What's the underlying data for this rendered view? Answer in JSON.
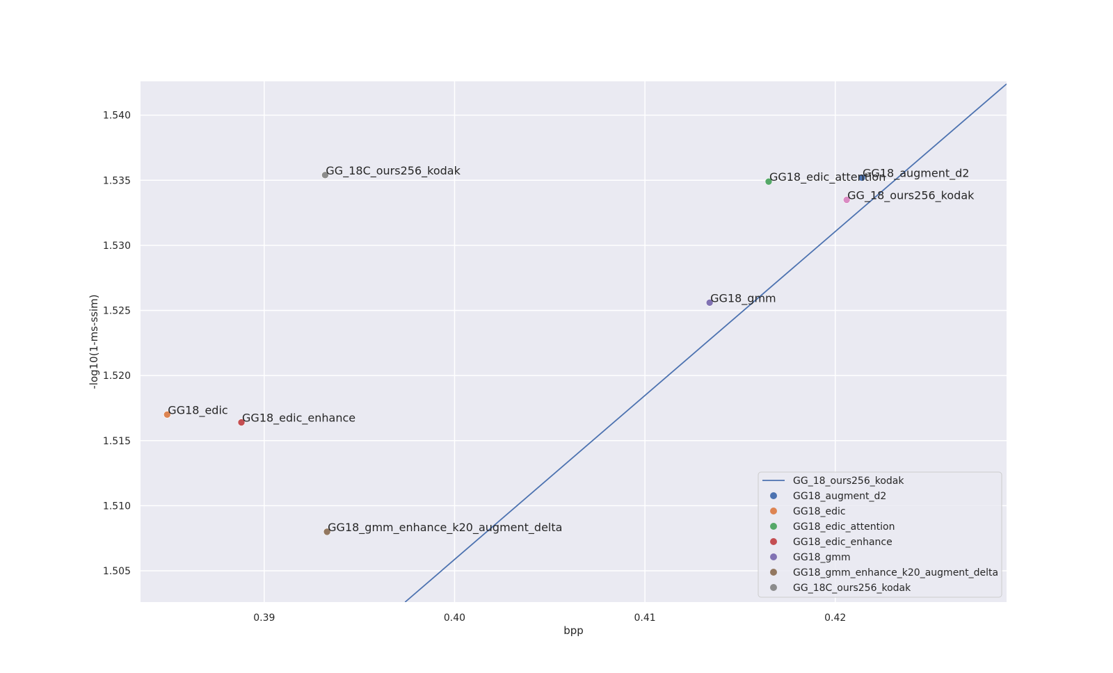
{
  "chart_data": {
    "type": "scatter",
    "xlabel": "bpp",
    "ylabel": "-log10(1-ms-ssim)",
    "xlim": [
      0.3835,
      0.429
    ],
    "ylim": [
      1.5026,
      1.5426
    ],
    "x_ticks": [
      0.39,
      0.4,
      0.41,
      0.42
    ],
    "x_tick_labels": [
      "0.39",
      "0.40",
      "0.41",
      "0.42"
    ],
    "y_ticks": [
      1.505,
      1.51,
      1.515,
      1.52,
      1.525,
      1.53,
      1.535,
      1.54
    ],
    "y_tick_labels": [
      "1.505",
      "1.510",
      "1.515",
      "1.520",
      "1.525",
      "1.530",
      "1.535",
      "1.540"
    ],
    "grid": true,
    "background": "#eaeaf2",
    "legend_position": "lower-right",
    "line": {
      "name": "GG_18_ours256_kodak",
      "color": "#4c72b0",
      "x": [
        0.3974,
        0.429
      ],
      "y": [
        1.5026,
        1.5424
      ]
    },
    "points": [
      {
        "name": "GG18_augment_d2",
        "x": 0.4214,
        "y": 1.5352,
        "color": "#4c72b0"
      },
      {
        "name": "GG18_edic",
        "x": 0.3849,
        "y": 1.517,
        "color": "#dd8452"
      },
      {
        "name": "GG18_edic_attention",
        "x": 0.4165,
        "y": 1.5349,
        "color": "#55a868"
      },
      {
        "name": "GG18_edic_enhance",
        "x": 0.3888,
        "y": 1.5164,
        "color": "#c44e52"
      },
      {
        "name": "GG18_gmm",
        "x": 0.4134,
        "y": 1.5256,
        "color": "#8172b3"
      },
      {
        "name": "GG18_gmm_enhance_k20_augment_delta",
        "x": 0.3933,
        "y": 1.508,
        "color": "#937860"
      },
      {
        "name": "GG_18C_ours256_kodak",
        "x": 0.3932,
        "y": 1.5354,
        "color": "#8c8c8c"
      },
      {
        "name": "GG_18_ours256_kodak",
        "x": 0.4206,
        "y": 1.5335,
        "color": "#da8bc3"
      }
    ],
    "legend": [
      {
        "label": "GG_18_ours256_kodak",
        "kind": "line",
        "color": "#4c72b0"
      },
      {
        "label": "GG18_augment_d2",
        "kind": "marker",
        "color": "#4c72b0"
      },
      {
        "label": "GG18_edic",
        "kind": "marker",
        "color": "#dd8452"
      },
      {
        "label": "GG18_edic_attention",
        "kind": "marker",
        "color": "#55a868"
      },
      {
        "label": "GG18_edic_enhance",
        "kind": "marker",
        "color": "#c44e52"
      },
      {
        "label": "GG18_gmm",
        "kind": "marker",
        "color": "#8172b3"
      },
      {
        "label": "GG18_gmm_enhance_k20_augment_delta",
        "kind": "marker",
        "color": "#937860"
      },
      {
        "label": "GG_18C_ours256_kodak",
        "kind": "marker",
        "color": "#8c8c8c"
      }
    ]
  }
}
